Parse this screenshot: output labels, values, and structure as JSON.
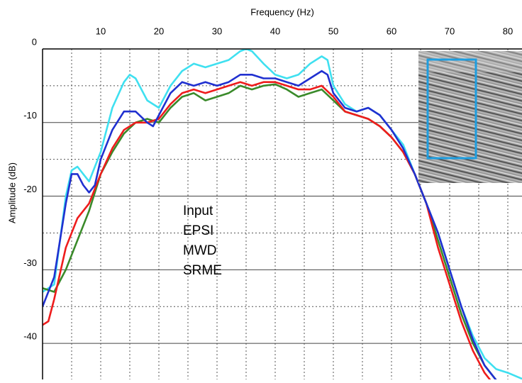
{
  "chart_data": {
    "type": "line",
    "x_label": "Frequency (Hz)",
    "y_label": "Amplitude (dB)",
    "xlim": [
      0,
      82.5
    ],
    "ylim": [
      -45,
      0
    ],
    "xticks": [
      10,
      20,
      30,
      40,
      50,
      60,
      70,
      80
    ],
    "yticks": [
      0,
      -10,
      -20,
      -30,
      -40
    ],
    "xminor": [
      5,
      15,
      25,
      35,
      45,
      55,
      65,
      75
    ],
    "yminor": [
      -5,
      -15,
      -25,
      -35
    ],
    "grid": true,
    "series": [
      {
        "name": "Input",
        "color": "#3fe0f0",
        "x": [
          0,
          2,
          4,
          5,
          6,
          7,
          8,
          10,
          12,
          14,
          15,
          16,
          18,
          20,
          22,
          24,
          26,
          28,
          30,
          32,
          34,
          35,
          36,
          38,
          40,
          42,
          44,
          46,
          48,
          49,
          50,
          52,
          54,
          56,
          58,
          60,
          62,
          64,
          66,
          68,
          70,
          72,
          74,
          76,
          78,
          80,
          83
        ],
        "values": [
          -33,
          -32,
          -20,
          -16.5,
          -16,
          -17,
          -18,
          -14,
          -8,
          -4.5,
          -3.5,
          -4,
          -7,
          -8,
          -5,
          -3,
          -2,
          -2.5,
          -2,
          -1.5,
          -0.3,
          0,
          -0.3,
          -2,
          -3.5,
          -4,
          -3.5,
          -2,
          -1,
          -1.5,
          -5,
          -7.5,
          -8.5,
          -8,
          -9,
          -11,
          -13,
          -17,
          -21,
          -25,
          -30,
          -35,
          -39,
          -42,
          -43.5,
          -44,
          -45
        ]
      },
      {
        "name": "EPSI",
        "color": "#3a8a2a",
        "x": [
          0,
          2,
          4,
          6,
          8,
          10,
          12,
          14,
          16,
          18,
          20,
          22,
          24,
          26,
          28,
          30,
          32,
          34,
          36,
          38,
          40,
          42,
          44,
          46,
          48,
          50,
          52,
          54,
          56,
          58,
          60,
          62,
          64,
          66,
          68,
          70,
          72,
          74,
          76,
          78
        ],
        "values": [
          -32.5,
          -33,
          -30,
          -26,
          -22,
          -17,
          -14,
          -11.5,
          -10,
          -9.5,
          -10,
          -8,
          -6.5,
          -6,
          -7,
          -6.5,
          -6,
          -5,
          -5.5,
          -5,
          -4.8,
          -5.5,
          -6.5,
          -6,
          -5.5,
          -7,
          -8.5,
          -9,
          -9.5,
          -10.5,
          -12,
          -14,
          -17,
          -21,
          -26,
          -31,
          -36,
          -40,
          -43,
          -45
        ]
      },
      {
        "name": "MWD",
        "color": "#ee1c1c",
        "x": [
          0,
          1,
          2,
          4,
          6,
          8,
          10,
          12,
          14,
          16,
          18,
          20,
          22,
          24,
          26,
          28,
          30,
          32,
          34,
          36,
          38,
          40,
          42,
          44,
          46,
          48,
          50,
          52,
          54,
          56,
          58,
          60,
          62,
          64,
          66,
          68,
          70,
          72,
          74,
          76,
          77
        ],
        "values": [
          -37.5,
          -37,
          -34,
          -27,
          -23,
          -21,
          -17,
          -13.5,
          -11,
          -10,
          -10,
          -9.5,
          -7.5,
          -6,
          -5.5,
          -6,
          -5.5,
          -5,
          -4.5,
          -5,
          -4.5,
          -4.5,
          -5,
          -5.5,
          -5.5,
          -5,
          -6.5,
          -8.5,
          -9,
          -9.5,
          -10.5,
          -12,
          -14,
          -17,
          -21,
          -27,
          -32,
          -37,
          -41,
          -44,
          -45
        ]
      },
      {
        "name": "SRME",
        "color": "#2030d0",
        "x": [
          0,
          2,
          4,
          5,
          6,
          7,
          8,
          9,
          10,
          12,
          14,
          16,
          18,
          19,
          20,
          22,
          24,
          26,
          28,
          30,
          32,
          34,
          36,
          38,
          40,
          42,
          44,
          46,
          48,
          49,
          50,
          52,
          54,
          56,
          58,
          60,
          62,
          64,
          66,
          68,
          70,
          72,
          74,
          76,
          78
        ],
        "values": [
          -35,
          -31,
          -21,
          -17,
          -17,
          -18.5,
          -19.5,
          -18.5,
          -15,
          -11,
          -8.5,
          -8.5,
          -10,
          -10.5,
          -9,
          -6,
          -4.5,
          -5,
          -4.5,
          -5,
          -4.5,
          -3.5,
          -3.5,
          -4,
          -4,
          -4.5,
          -5,
          -4,
          -3,
          -3.5,
          -6,
          -8,
          -8.5,
          -8,
          -9,
          -11,
          -13.5,
          -17,
          -21,
          -25,
          -30,
          -35,
          -39.5,
          -43,
          -45
        ]
      }
    ]
  }
}
